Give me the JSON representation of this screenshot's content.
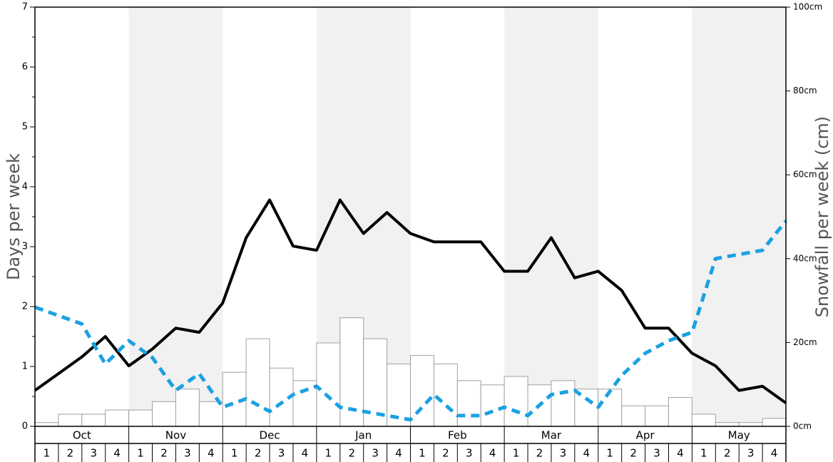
{
  "chart_data": {
    "type": "bar+line",
    "months": [
      "Oct",
      "Nov",
      "Dec",
      "Jan",
      "Feb",
      "Mar",
      "Apr",
      "May"
    ],
    "weeks": [
      "1",
      "2",
      "3",
      "4"
    ],
    "ylabel_left": "Days per week",
    "ylabel_right": "Snowfall per week (cm)",
    "ylim_left": [
      0,
      7
    ],
    "ylim_right": [
      0,
      100
    ],
    "left_ticks": [
      "0",
      "1",
      "2",
      "3",
      "4",
      "5",
      "6",
      "7"
    ],
    "right_ticks": [
      "0cm",
      "20cm",
      "40cm",
      "60cm",
      "80cm",
      "100cm"
    ],
    "series": [
      {
        "kind": "bar",
        "axis": "right",
        "color": "#ffffff",
        "values": [
          0.9,
          2.9,
          2.9,
          3.9,
          3.9,
          5.9,
          8.9,
          5.9,
          12.9,
          20.9,
          13.9,
          10.9,
          19.9,
          25.9,
          20.9,
          14.9,
          16.9,
          14.9,
          10.9,
          9.9,
          11.9,
          9.9,
          10.9,
          8.9,
          8.9,
          4.9,
          4.9,
          6.9,
          2.9,
          0.9,
          0.9,
          1.9
        ]
      },
      {
        "kind": "line",
        "axis": "left",
        "color": "#000000",
        "values": [
          0.6,
          0.88,
          1.16,
          1.5,
          1.01,
          1.29,
          1.64,
          1.57,
          2.06,
          3.15,
          3.78,
          3.01,
          2.94,
          3.78,
          3.22,
          3.57,
          3.22,
          3.08,
          3.08,
          3.08,
          2.59,
          2.59,
          3.15,
          2.48,
          2.59,
          2.27,
          1.64,
          1.64,
          1.22,
          1.01,
          0.6,
          0.67,
          0.39
        ]
      },
      {
        "kind": "line",
        "axis": "left",
        "style": "dashed",
        "color": "#1ba1e2",
        "values": [
          1.99,
          1.85,
          1.71,
          1.04,
          1.43,
          1.15,
          0.6,
          0.88,
          0.32,
          0.46,
          0.25,
          0.53,
          0.67,
          0.32,
          0.25,
          0.18,
          0.11,
          0.53,
          0.18,
          0.18,
          0.32,
          0.18,
          0.53,
          0.6,
          0.32,
          0.85,
          1.22,
          1.43,
          1.57,
          2.8,
          2.87,
          2.94,
          3.43
        ]
      }
    ],
    "grid": false,
    "legend": "none"
  }
}
